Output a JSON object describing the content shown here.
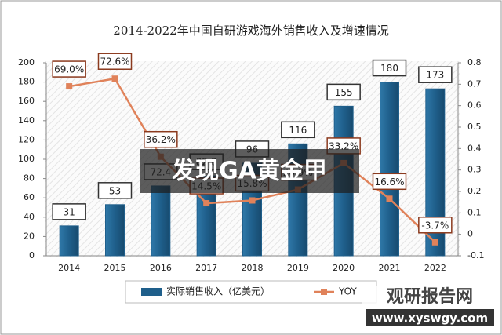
{
  "chart_data": {
    "type": "bar-line",
    "title": "2014-2022年中国自研游戏海外销售收入及增速情况",
    "categories": [
      "2014",
      "2015",
      "2016",
      "2017",
      "2018",
      "2019",
      "2020",
      "2021",
      "2022"
    ],
    "series": [
      {
        "name": "实际销售收入（亿美元）",
        "type": "bar",
        "color": "#1f5f8b",
        "values": [
          31,
          53,
          72.4,
          82.8,
          96,
          116,
          155,
          180,
          173
        ]
      },
      {
        "name": "YOY",
        "type": "line",
        "axis": "y2",
        "color": "#e0825a",
        "values": [
          0.69,
          0.726,
          0.362,
          0.145,
          0.158,
          0.209,
          0.332,
          0.166,
          -0.037
        ],
        "value_labels": [
          "69.0%",
          "72.6%",
          "36.2%",
          "14.5%",
          "15.8%",
          "20.9%",
          "33.2%",
          "16.6%",
          "-3.7%"
        ]
      }
    ],
    "ylim": [
      0,
      200
    ],
    "yticks": [
      0,
      20,
      40,
      60,
      80,
      100,
      120,
      140,
      160,
      180,
      200
    ],
    "y2lim": [
      -0.1,
      0.8
    ],
    "y2ticks": [
      -0.1,
      0,
      0.1,
      0.2,
      0.3,
      0.4,
      0.5,
      0.6,
      0.7,
      0.8
    ],
    "legend": "bottom"
  },
  "overlay": {
    "banner": "发现GA黄金甲",
    "watermark_title": "观研报告网",
    "watermark_url": "www.xyswgy.com"
  }
}
